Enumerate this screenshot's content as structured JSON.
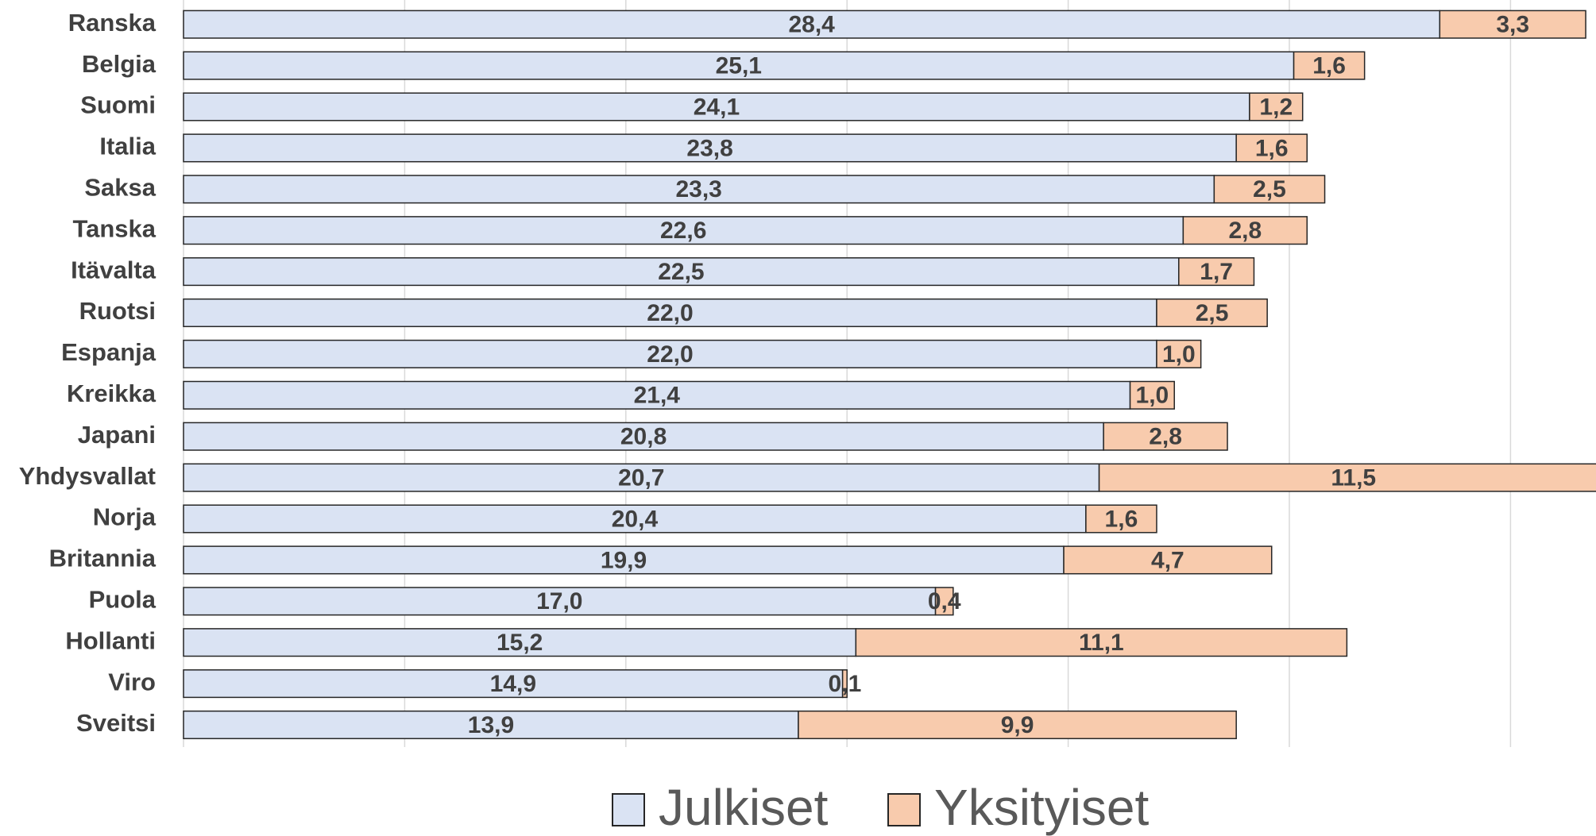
{
  "chart_data": {
    "type": "stacked_barh",
    "categories": [
      "Ranska",
      "Belgia",
      "Suomi",
      "Italia",
      "Saksa",
      "Tanska",
      "Itävalta",
      "Ruotsi",
      "Espanja",
      "Kreikka",
      "Japani",
      "Yhdysvallat",
      "Norja",
      "Britannia",
      "Puola",
      "Hollanti",
      "Viro",
      "Sveitsi"
    ],
    "series": [
      {
        "name": "Julkiset",
        "color": "#dae3f3",
        "values": [
          28.4,
          25.1,
          24.1,
          23.8,
          23.3,
          22.6,
          22.5,
          22.0,
          22.0,
          21.4,
          20.8,
          20.7,
          20.4,
          19.9,
          17.0,
          15.2,
          14.9,
          13.9
        ],
        "value_labels": [
          "28,4",
          "25,1",
          "24,1",
          "23,8",
          "23,3",
          "22,6",
          "22,5",
          "22,0",
          "22,0",
          "21,4",
          "20,8",
          "20,7",
          "20,4",
          "19,9",
          "17,0",
          "15,2",
          "14,9",
          "13,9"
        ]
      },
      {
        "name": "Yksityiset",
        "color": "#f8cbad",
        "values": [
          3.3,
          1.6,
          1.2,
          1.6,
          2.5,
          2.8,
          1.7,
          2.5,
          1.0,
          1.0,
          2.8,
          11.5,
          1.6,
          4.7,
          0.4,
          11.1,
          0.1,
          9.9
        ],
        "value_labels": [
          "3,3",
          "1,6",
          "1,2",
          "1,6",
          "2,5",
          "2,8",
          "1,7",
          "2,5",
          "1,0",
          "1,0",
          "2,8",
          "11,5",
          "1,6",
          "4,7",
          "0,4",
          "11,1",
          "0,1",
          "9,9"
        ]
      }
    ],
    "xlim": [
      0,
      32
    ],
    "xticks": [
      0,
      5,
      10,
      15,
      20,
      25,
      30
    ],
    "tick_labels": false,
    "grid": true,
    "legend": "bottom"
  }
}
